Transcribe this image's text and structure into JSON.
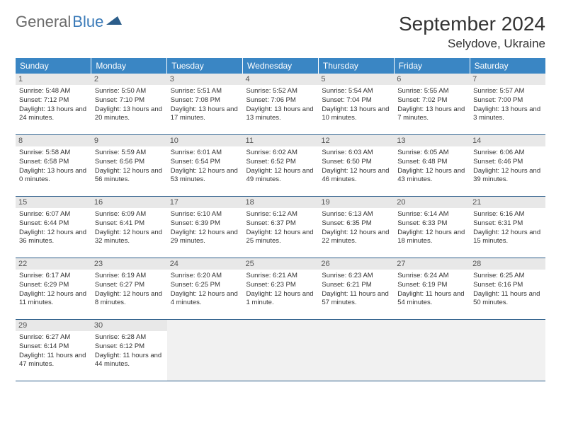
{
  "logo": {
    "text1": "General",
    "text2": "Blue"
  },
  "title": "September 2024",
  "location": "Selydove, Ukraine",
  "colors": {
    "header_bg": "#3a86c4",
    "header_text": "#ffffff",
    "daynum_bg": "#e8e8e8",
    "border": "#2b5d8a",
    "logo_gray": "#6a6a6a",
    "logo_blue": "#3a7ab8"
  },
  "weekdays": [
    "Sunday",
    "Monday",
    "Tuesday",
    "Wednesday",
    "Thursday",
    "Friday",
    "Saturday"
  ],
  "days": [
    {
      "n": "1",
      "sr": "5:48 AM",
      "ss": "7:12 PM",
      "dl": "13 hours and 24 minutes."
    },
    {
      "n": "2",
      "sr": "5:50 AM",
      "ss": "7:10 PM",
      "dl": "13 hours and 20 minutes."
    },
    {
      "n": "3",
      "sr": "5:51 AM",
      "ss": "7:08 PM",
      "dl": "13 hours and 17 minutes."
    },
    {
      "n": "4",
      "sr": "5:52 AM",
      "ss": "7:06 PM",
      "dl": "13 hours and 13 minutes."
    },
    {
      "n": "5",
      "sr": "5:54 AM",
      "ss": "7:04 PM",
      "dl": "13 hours and 10 minutes."
    },
    {
      "n": "6",
      "sr": "5:55 AM",
      "ss": "7:02 PM",
      "dl": "13 hours and 7 minutes."
    },
    {
      "n": "7",
      "sr": "5:57 AM",
      "ss": "7:00 PM",
      "dl": "13 hours and 3 minutes."
    },
    {
      "n": "8",
      "sr": "5:58 AM",
      "ss": "6:58 PM",
      "dl": "13 hours and 0 minutes."
    },
    {
      "n": "9",
      "sr": "5:59 AM",
      "ss": "6:56 PM",
      "dl": "12 hours and 56 minutes."
    },
    {
      "n": "10",
      "sr": "6:01 AM",
      "ss": "6:54 PM",
      "dl": "12 hours and 53 minutes."
    },
    {
      "n": "11",
      "sr": "6:02 AM",
      "ss": "6:52 PM",
      "dl": "12 hours and 49 minutes."
    },
    {
      "n": "12",
      "sr": "6:03 AM",
      "ss": "6:50 PM",
      "dl": "12 hours and 46 minutes."
    },
    {
      "n": "13",
      "sr": "6:05 AM",
      "ss": "6:48 PM",
      "dl": "12 hours and 43 minutes."
    },
    {
      "n": "14",
      "sr": "6:06 AM",
      "ss": "6:46 PM",
      "dl": "12 hours and 39 minutes."
    },
    {
      "n": "15",
      "sr": "6:07 AM",
      "ss": "6:44 PM",
      "dl": "12 hours and 36 minutes."
    },
    {
      "n": "16",
      "sr": "6:09 AM",
      "ss": "6:41 PM",
      "dl": "12 hours and 32 minutes."
    },
    {
      "n": "17",
      "sr": "6:10 AM",
      "ss": "6:39 PM",
      "dl": "12 hours and 29 minutes."
    },
    {
      "n": "18",
      "sr": "6:12 AM",
      "ss": "6:37 PM",
      "dl": "12 hours and 25 minutes."
    },
    {
      "n": "19",
      "sr": "6:13 AM",
      "ss": "6:35 PM",
      "dl": "12 hours and 22 minutes."
    },
    {
      "n": "20",
      "sr": "6:14 AM",
      "ss": "6:33 PM",
      "dl": "12 hours and 18 minutes."
    },
    {
      "n": "21",
      "sr": "6:16 AM",
      "ss": "6:31 PM",
      "dl": "12 hours and 15 minutes."
    },
    {
      "n": "22",
      "sr": "6:17 AM",
      "ss": "6:29 PM",
      "dl": "12 hours and 11 minutes."
    },
    {
      "n": "23",
      "sr": "6:19 AM",
      "ss": "6:27 PM",
      "dl": "12 hours and 8 minutes."
    },
    {
      "n": "24",
      "sr": "6:20 AM",
      "ss": "6:25 PM",
      "dl": "12 hours and 4 minutes."
    },
    {
      "n": "25",
      "sr": "6:21 AM",
      "ss": "6:23 PM",
      "dl": "12 hours and 1 minute."
    },
    {
      "n": "26",
      "sr": "6:23 AM",
      "ss": "6:21 PM",
      "dl": "11 hours and 57 minutes."
    },
    {
      "n": "27",
      "sr": "6:24 AM",
      "ss": "6:19 PM",
      "dl": "11 hours and 54 minutes."
    },
    {
      "n": "28",
      "sr": "6:25 AM",
      "ss": "6:16 PM",
      "dl": "11 hours and 50 minutes."
    },
    {
      "n": "29",
      "sr": "6:27 AM",
      "ss": "6:14 PM",
      "dl": "11 hours and 47 minutes."
    },
    {
      "n": "30",
      "sr": "6:28 AM",
      "ss": "6:12 PM",
      "dl": "11 hours and 44 minutes."
    }
  ],
  "labels": {
    "sunrise": "Sunrise:",
    "sunset": "Sunset:",
    "daylight": "Daylight:"
  },
  "trailing_empty": 5
}
